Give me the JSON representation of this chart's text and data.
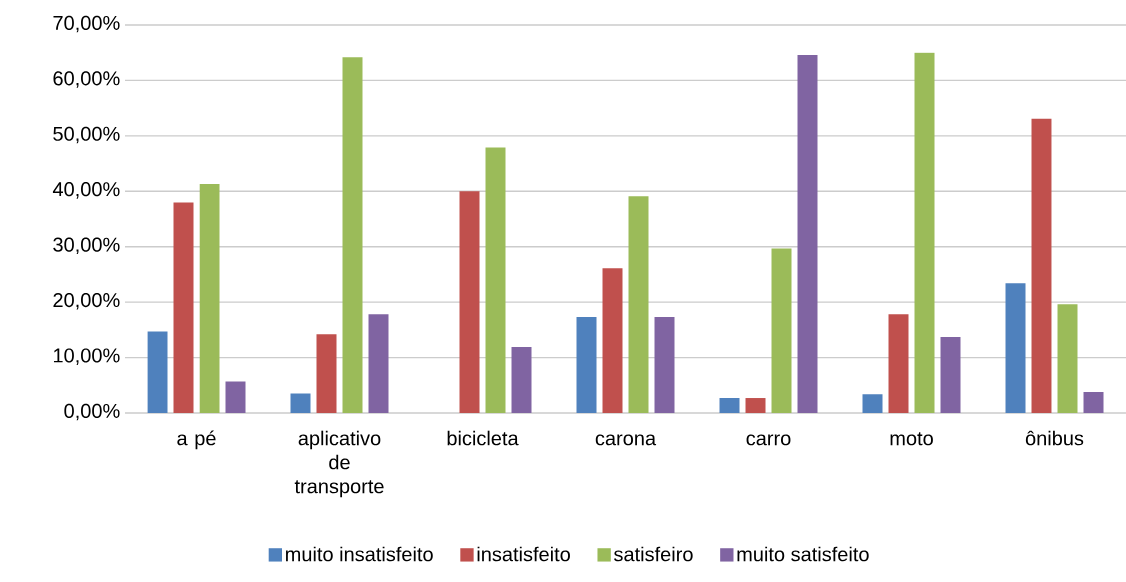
{
  "chart_data": {
    "type": "bar",
    "categories": [
      "a pé",
      "aplicativo de transporte",
      "bicicleta",
      "carona",
      "carro",
      "moto",
      "ônibus"
    ],
    "series": [
      {
        "name": "muito insatisfeito",
        "color": "#4f81bd",
        "values": [
          14.7,
          3.5,
          0,
          17.3,
          2.7,
          3.4,
          23.4
        ]
      },
      {
        "name": "insatisfeito",
        "color": "#c0504d",
        "values": [
          38.0,
          14.2,
          40.0,
          26.1,
          2.7,
          17.8,
          53.1
        ]
      },
      {
        "name": "satisfeiro",
        "color": "#9bbb59",
        "values": [
          41.3,
          64.2,
          47.9,
          39.1,
          29.7,
          65.0,
          19.6
        ]
      },
      {
        "name": "muito satisfeito",
        "color": "#8064a2",
        "values": [
          5.7,
          17.8,
          11.9,
          17.3,
          64.6,
          13.7,
          3.8
        ]
      }
    ],
    "ylim": [
      0,
      70
    ],
    "yticks": [
      {
        "value": 0,
        "label": "0,00%"
      },
      {
        "value": 10,
        "label": "10,00%"
      },
      {
        "value": 20,
        "label": "20,00%"
      },
      {
        "value": 30,
        "label": "30,00%"
      },
      {
        "value": 40,
        "label": "40,00%"
      },
      {
        "value": 50,
        "label": "50,00%"
      },
      {
        "value": 60,
        "label": "60,00%"
      },
      {
        "value": 70,
        "label": "70,00%"
      }
    ],
    "grid": "y",
    "legend": "bottom"
  }
}
